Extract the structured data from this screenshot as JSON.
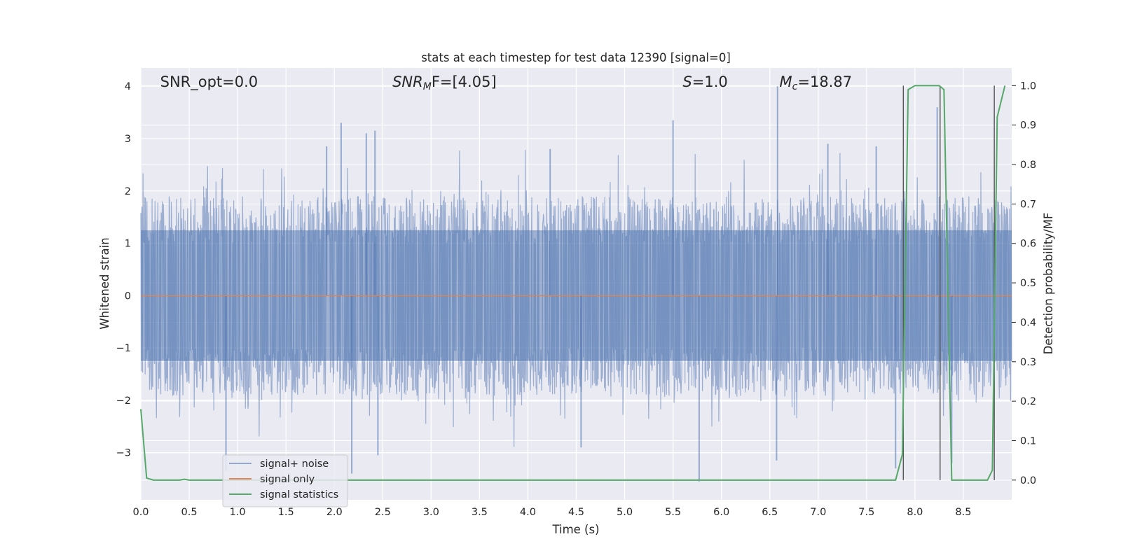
{
  "chart_data": {
    "type": "line",
    "title": "stats at each timestep for test data 12390 [signal=0]",
    "xlabel": "Time (s)",
    "ylabel": "Whitened strain",
    "y2label": "Detection probability/MF",
    "xlim": [
      0,
      9
    ],
    "ylim": [
      -3.9,
      4.35
    ],
    "y2lim": [
      -0.05,
      1.045
    ],
    "x_ticks": [
      0.0,
      0.5,
      1.0,
      1.5,
      2.0,
      2.5,
      3.0,
      3.5,
      4.0,
      4.5,
      5.0,
      5.5,
      6.0,
      6.5,
      7.0,
      7.5,
      8.0,
      8.5
    ],
    "x_tick_labels": [
      "0.0",
      "0.5",
      "1.0",
      "1.5",
      "2.0",
      "2.5",
      "3.0",
      "3.5",
      "4.0",
      "4.5",
      "5.0",
      "5.5",
      "6.0",
      "6.5",
      "7.0",
      "7.5",
      "8.0",
      "8.5"
    ],
    "y_ticks": [
      -3,
      -2,
      -1,
      0,
      1,
      2,
      3,
      4
    ],
    "y_tick_labels": [
      "−3",
      "−2",
      "−1",
      "0",
      "1",
      "2",
      "3",
      "4"
    ],
    "y2_ticks": [
      0.0,
      0.1,
      0.2,
      0.3,
      0.4,
      0.5,
      0.6,
      0.7,
      0.8,
      0.9,
      1.0
    ],
    "y2_tick_labels": [
      "0.0",
      "0.1",
      "0.2",
      "0.3",
      "0.4",
      "0.5",
      "0.6",
      "0.7",
      "0.8",
      "0.9",
      "1.0"
    ],
    "grid": true,
    "legend_position": "bottom-left",
    "series": [
      {
        "name": "signal+ noise",
        "color": "#4c72b0",
        "axis": "left",
        "noise_envelope_abs": 1.6,
        "peaks": [
          {
            "x": 2.07,
            "y": 3.3
          },
          {
            "x": 2.33,
            "y": 3.1
          },
          {
            "x": 2.42,
            "y": 3.15
          },
          {
            "x": 5.5,
            "y": 3.35
          },
          {
            "x": 6.58,
            "y": 4.0
          },
          {
            "x": 8.23,
            "y": 3.6
          },
          {
            "x": 1.92,
            "y": 2.85
          },
          {
            "x": 4.23,
            "y": 2.8
          },
          {
            "x": 7.1,
            "y": 2.9
          },
          {
            "x": 7.6,
            "y": 2.85
          },
          {
            "x": 0.88,
            "y": -3.35
          },
          {
            "x": 2.18,
            "y": -3.4
          },
          {
            "x": 5.77,
            "y": -3.55
          },
          {
            "x": 2.45,
            "y": -3.05
          },
          {
            "x": 6.57,
            "y": -3.15
          },
          {
            "x": 8.38,
            "y": -3.2
          },
          {
            "x": 7.8,
            "y": -3.3
          },
          {
            "x": 4.55,
            "y": -2.9
          }
        ]
      },
      {
        "name": "signal only",
        "color": "#dd8452",
        "axis": "left",
        "x": [
          0,
          9
        ],
        "y": [
          0,
          0
        ]
      },
      {
        "name": "signal statistics",
        "color": "#55a868",
        "axis": "right",
        "x": [
          0.0,
          0.06,
          0.13,
          0.4,
          0.45,
          0.5,
          7.8,
          7.87,
          7.93,
          8.0,
          8.25,
          8.3,
          8.38,
          8.45,
          8.75,
          8.8,
          8.85,
          8.93
        ],
        "y": [
          0.18,
          0.005,
          0.0,
          0.0,
          0.002,
          0.0,
          0.0,
          0.065,
          0.99,
          1.0,
          1.0,
          0.99,
          0.0,
          0.0,
          0.0,
          0.025,
          0.92,
          1.0
        ]
      }
    ],
    "vlines": [
      7.88,
      8.26,
      8.82
    ],
    "vline_color": "#555555",
    "annotations": [
      {
        "name": "snr-opt",
        "text": "SNR_opt=0.0",
        "x": 0.2
      },
      {
        "name": "snr-mf",
        "base": "SNR",
        "sub": "M",
        "tail": "F=[4.05]",
        "x": 2.6
      },
      {
        "name": "s-value",
        "base": "S",
        "tail": "=1.0",
        "x": 5.6
      },
      {
        "name": "mc-value",
        "base": "M",
        "sub": "c",
        "tail": "=18.87",
        "x": 6.6
      }
    ],
    "background": "#eaeaf2"
  }
}
